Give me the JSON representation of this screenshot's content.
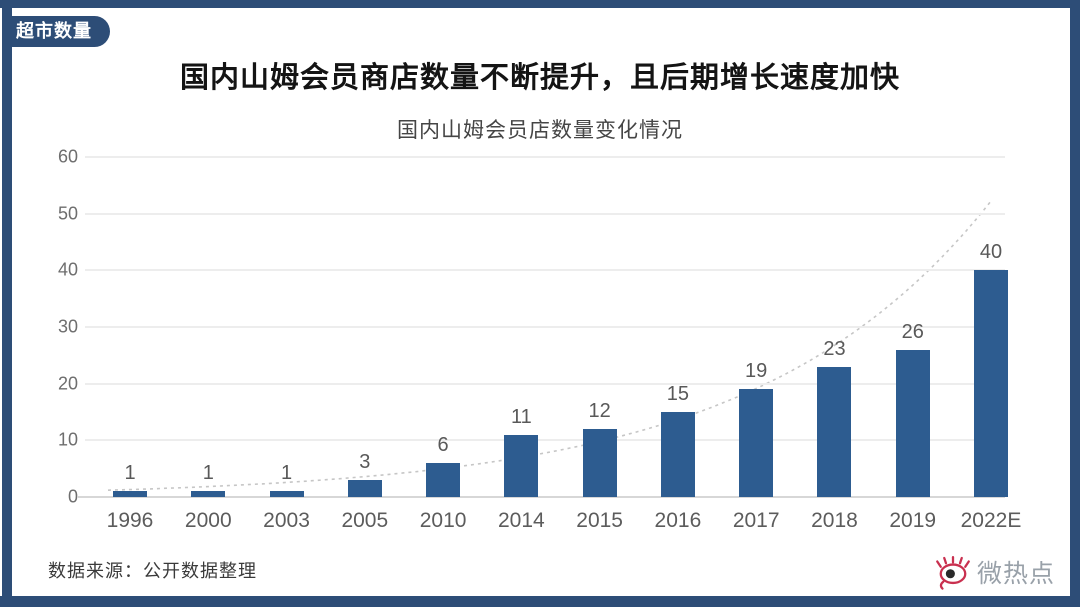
{
  "badge": {
    "label": "超市数量"
  },
  "header": {
    "title": "国内山姆会员商店数量不断提升，且后期增长速度加快",
    "subtitle": "国内山姆会员店数量变化情况"
  },
  "chart_data": {
    "type": "bar",
    "title": "国内山姆会员店数量变化情况",
    "categories": [
      "1996",
      "2000",
      "2003",
      "2005",
      "2010",
      "2014",
      "2015",
      "2016",
      "2017",
      "2018",
      "2019",
      "2022E"
    ],
    "values": [
      1,
      1,
      1,
      3,
      6,
      11,
      12,
      15,
      19,
      23,
      26,
      40
    ],
    "xlabel": "",
    "ylabel": "",
    "ylim": [
      0,
      60
    ],
    "yticks": [
      0,
      10,
      20,
      30,
      40,
      50,
      60
    ],
    "grid": "horizontal",
    "legend": "none",
    "bar_color": "#2d5c90",
    "trendline": {
      "style": "dashed",
      "color": "#c6c6c6",
      "shape": "exponential growth trend",
      "end_value_approx": 52
    }
  },
  "footer": {
    "source": "数据来源：公开数据整理",
    "logo_text": "微热点"
  },
  "colors": {
    "frame": "#2d4d77",
    "bar": "#2d5c90",
    "grid": "#ededed",
    "axis_text": "#6e6e6e",
    "logo_red": "#c9304f"
  }
}
